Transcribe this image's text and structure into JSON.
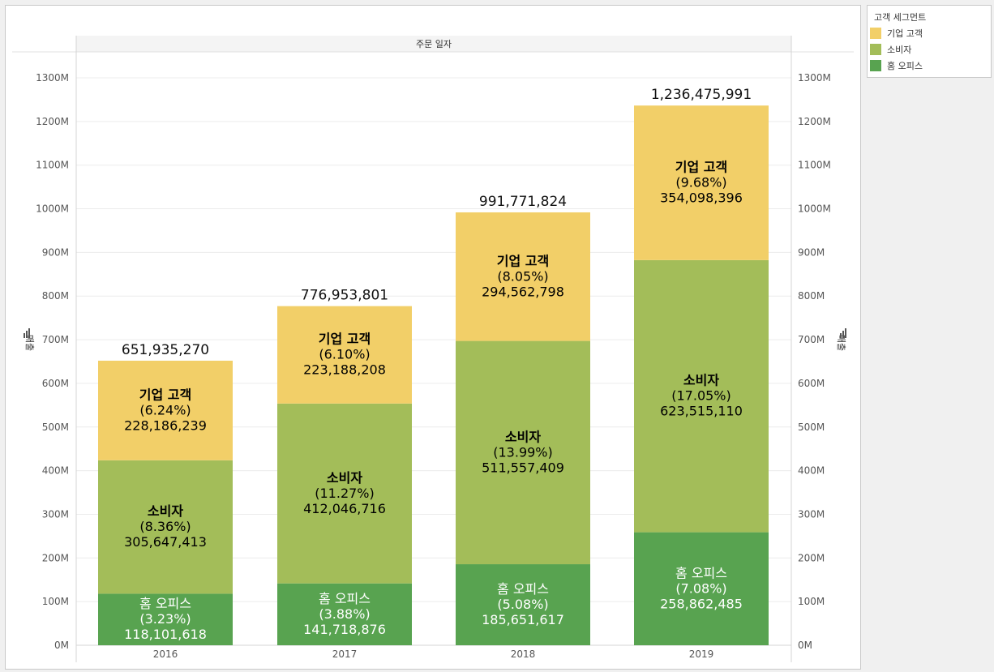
{
  "legend": {
    "title": "고객 세그먼트",
    "items": [
      {
        "label": "기업 고객",
        "color": "#f2cf68"
      },
      {
        "label": "소비자",
        "color": "#a3bd59"
      },
      {
        "label": "홈 오피스",
        "color": "#58a350"
      }
    ]
  },
  "chart_data": {
    "type": "bar",
    "stacked": true,
    "title": "주문 일자",
    "ylabel": "매출",
    "y_right_label": "매출",
    "ylim": [
      0,
      1300000000
    ],
    "yticks": [
      "0M",
      "100M",
      "200M",
      "300M",
      "400M",
      "500M",
      "600M",
      "700M",
      "800M",
      "900M",
      "1000M",
      "1100M",
      "1200M",
      "1300M"
    ],
    "categories": [
      "2016",
      "2017",
      "2018",
      "2019"
    ],
    "totals": [
      "651,935,270",
      "776,953,801",
      "991,771,824",
      "1,236,475,991"
    ],
    "total_values": [
      651935270,
      776953801,
      991771824,
      1236475991
    ],
    "series": [
      {
        "name": "홈 오피스",
        "color": "#58a350",
        "label_color": "#ffffff",
        "values": [
          118101618,
          141718876,
          185651617,
          258862485
        ],
        "value_labels": [
          "118,101,618",
          "141,718,876",
          "185,651,617",
          "258,862,485"
        ],
        "percents": [
          "(3.23%)",
          "(3.88%)",
          "(5.08%)",
          "(7.08%)"
        ]
      },
      {
        "name": "소비자",
        "color": "#a3bd59",
        "label_color": "#000000",
        "values": [
          305647413,
          412046716,
          511557409,
          623515110
        ],
        "value_labels": [
          "305,647,413",
          "412,046,716",
          "511,557,409",
          "623,515,110"
        ],
        "percents": [
          "(8.36%)",
          "(11.27%)",
          "(13.99%)",
          "(17.05%)"
        ]
      },
      {
        "name": "기업 고객",
        "color": "#f2cf68",
        "label_color": "#000000",
        "values": [
          228186239,
          223188208,
          294562798,
          354098396
        ],
        "value_labels": [
          "228,186,239",
          "223,188,208",
          "294,562,798",
          "354,098,396"
        ],
        "percents": [
          "(6.24%)",
          "(6.10%)",
          "(8.05%)",
          "(9.68%)"
        ]
      }
    ],
    "grid": true,
    "legend_position": "top-right"
  }
}
